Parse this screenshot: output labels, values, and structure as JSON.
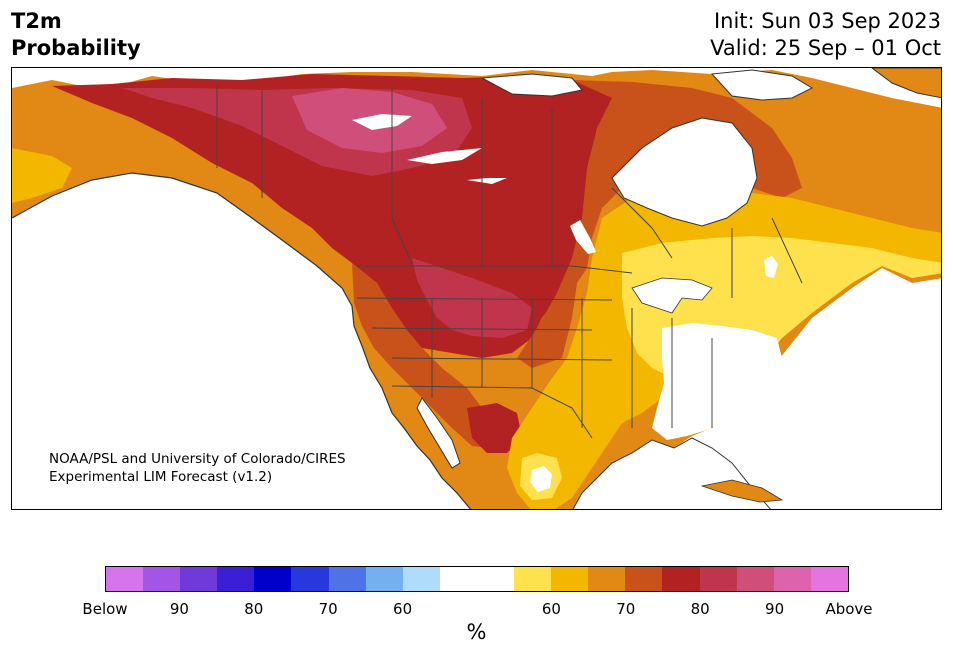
{
  "title": {
    "line1": "T2m",
    "line2": "Probability"
  },
  "header_right": {
    "init": "Init: Sun 03 Sep 2023",
    "valid": "Valid: 25 Sep – 01 Oct"
  },
  "credit": {
    "line1": "NOAA/PSL and University of Colorado/CIRES",
    "line2": "Experimental LIM Forecast (v1.2)"
  },
  "colorbar": {
    "colors": [
      "#d574ec",
      "#a455e5",
      "#6f3ad9",
      "#3a1fd6",
      "#0000cd",
      "#2838dc",
      "#4f72e6",
      "#74aff0",
      "#aedcf9",
      "#ffffff",
      "#ffffff",
      "#ffe04d",
      "#f3b700",
      "#e18815",
      "#c9521b",
      "#b22222",
      "#c0354c",
      "#d04f7a",
      "#dd63ac",
      "#e574e0"
    ],
    "tick_labels": [
      "Below",
      "90",
      "80",
      "70",
      "60",
      "60",
      "70",
      "80",
      "90",
      "Above"
    ],
    "unit": "%"
  },
  "legend_colors": {
    "above_60": "#ffe04d",
    "above_70": "#f3b700",
    "above_80": "#e18815",
    "above_90": "#c9521b",
    "deep_red": "#b22222",
    "crimson": "#c0354c",
    "pink": "#d04f7a",
    "neutral": "#ffffff"
  },
  "map": {
    "region": "North America",
    "projection": "conic"
  }
}
